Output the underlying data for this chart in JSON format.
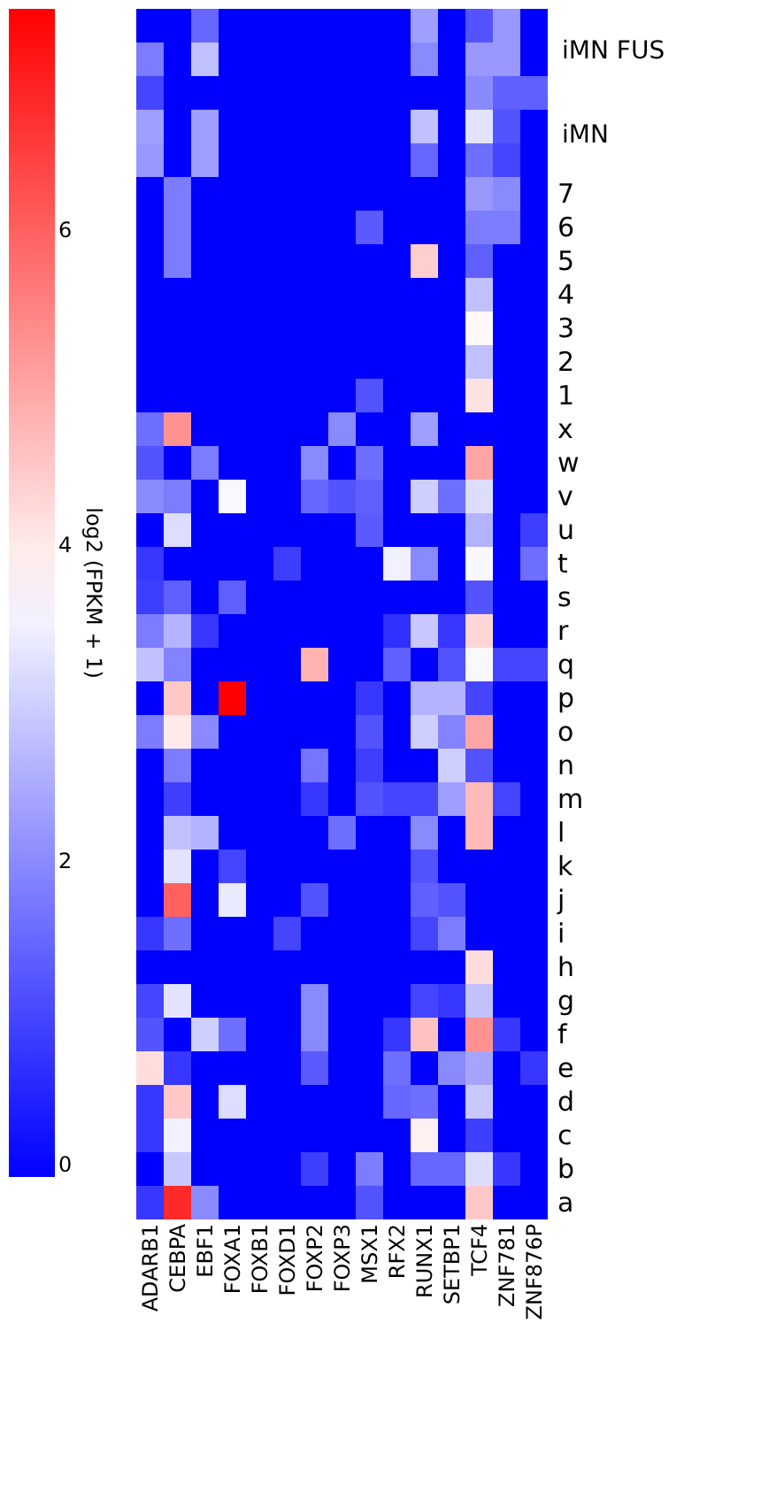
{
  "chart_data": {
    "type": "heatmap",
    "clabel": "log2 (FPKM + 1)",
    "clim": [
      0,
      7.4
    ],
    "cticks": [
      0,
      2,
      4,
      6
    ],
    "annotations": [
      "iMN FUS",
      "iMN"
    ],
    "categories": [
      "ADARB1",
      "CEBPA",
      "EBF1",
      "FOXA1",
      "FOXB1",
      "FOXD1",
      "FOXP2",
      "FOXP3",
      "MSX1",
      "RFX2",
      "RUNX1",
      "SETBP1",
      "TCF4",
      "ZNF781",
      "ZNF876P"
    ],
    "y_categories": [
      null,
      null,
      null,
      null,
      null,
      "7",
      "6",
      "5",
      "4",
      "3",
      "2",
      "1",
      "x",
      "w",
      "v",
      "u",
      "t",
      "s",
      "r",
      "q",
      "p",
      "o",
      "n",
      "m",
      "l",
      "k",
      "j",
      "i",
      "h",
      "g",
      "f",
      "e",
      "d",
      "c",
      "b",
      "a"
    ],
    "cells": [
      [
        0,
        0,
        1.5,
        0,
        0,
        0,
        0,
        0,
        0,
        0,
        2.3,
        0,
        1.2,
        2.2,
        0
      ],
      [
        1.8,
        0,
        2.8,
        0,
        0,
        0,
        0,
        0,
        0,
        0,
        2.0,
        0,
        2.2,
        2.2,
        0
      ],
      [
        1.0,
        0,
        0,
        0,
        0,
        0,
        0,
        0,
        0,
        0,
        0,
        0,
        2.0,
        1.4,
        1.4
      ],
      [
        2.3,
        0,
        2.3,
        0,
        0,
        0,
        0,
        0,
        0,
        0,
        2.8,
        0,
        3.3,
        1.2,
        0
      ],
      [
        2.2,
        0,
        2.3,
        0,
        0,
        0,
        0,
        0,
        0,
        0,
        1.5,
        0,
        1.6,
        1.0,
        0
      ],
      [
        0,
        1.8,
        0,
        0,
        0,
        0,
        0,
        0,
        0,
        0,
        0,
        0,
        2.2,
        2.0,
        0
      ],
      [
        0,
        1.8,
        0,
        0,
        0,
        0,
        0,
        0,
        1.3,
        0,
        0,
        0,
        1.8,
        1.8,
        0
      ],
      [
        0,
        1.8,
        0,
        0,
        0,
        0,
        0,
        0,
        0,
        0,
        4.4,
        0,
        1.4,
        0,
        0
      ],
      [
        0,
        0,
        0,
        0,
        0,
        0,
        0,
        0,
        0,
        0,
        0,
        0,
        2.8,
        0,
        0
      ],
      [
        0,
        0,
        0,
        0,
        0,
        0,
        0,
        0,
        0,
        0,
        0,
        0,
        3.8,
        0,
        0
      ],
      [
        0,
        0,
        0,
        0,
        0,
        0,
        0,
        0,
        0,
        0,
        0,
        0,
        2.8,
        0,
        0
      ],
      [
        0,
        0,
        0,
        0,
        0,
        0,
        0,
        0,
        1.2,
        0,
        0,
        0,
        4.1,
        0,
        0
      ],
      [
        1.6,
        5.3,
        0,
        0,
        0,
        0,
        0,
        2.0,
        0,
        0,
        2.3,
        0,
        0,
        0,
        0
      ],
      [
        1.2,
        0,
        1.8,
        0,
        0,
        0,
        2.0,
        0,
        1.6,
        0,
        0,
        0,
        5.0,
        0,
        0
      ],
      [
        2.0,
        1.8,
        0,
        3.6,
        0,
        0,
        1.5,
        1.2,
        1.4,
        0,
        3.0,
        1.6,
        3.2,
        0,
        0
      ],
      [
        0,
        3.2,
        0,
        0,
        0,
        0,
        0,
        0,
        1.3,
        0,
        0,
        0,
        2.6,
        0,
        0.9
      ],
      [
        0.8,
        0,
        0,
        0,
        0,
        0.9,
        0,
        0,
        0,
        3.5,
        2.0,
        0,
        3.6,
        0,
        1.6
      ],
      [
        0.9,
        1.4,
        0,
        1.4,
        0,
        0,
        0,
        0,
        0,
        0,
        0,
        0,
        1.2,
        0,
        0
      ],
      [
        1.8,
        2.6,
        0.8,
        0,
        0,
        0,
        0,
        0,
        0,
        0.7,
        2.9,
        0.8,
        4.3,
        0,
        0
      ],
      [
        2.8,
        1.9,
        0,
        0,
        0,
        0,
        4.8,
        0,
        0,
        1.4,
        0,
        1.2,
        3.6,
        1.0,
        1.0
      ],
      [
        0,
        4.5,
        0,
        7.4,
        0,
        0,
        0,
        0,
        0.8,
        0,
        2.6,
        2.6,
        1.0,
        0,
        0
      ],
      [
        1.8,
        4.0,
        2.0,
        0,
        0,
        0,
        0,
        0,
        1.2,
        0,
        3.0,
        1.9,
        5.0,
        0,
        0
      ],
      [
        0,
        1.8,
        0,
        0,
        0,
        0,
        1.7,
        0,
        0.9,
        0,
        0,
        3.0,
        1.2,
        0,
        0
      ],
      [
        0,
        0.9,
        0,
        0,
        0,
        0,
        0.8,
        0,
        1.2,
        1.0,
        1.0,
        2.3,
        4.7,
        1.0,
        0
      ],
      [
        0,
        2.8,
        2.6,
        0,
        0,
        0,
        0,
        1.6,
        0,
        0,
        2.0,
        0,
        4.7,
        0,
        0
      ],
      [
        0,
        3.3,
        0,
        1.0,
        0,
        0,
        0,
        0,
        0,
        0,
        1.2,
        0,
        0,
        0,
        0
      ],
      [
        0,
        6.0,
        0,
        3.4,
        0,
        0,
        1.2,
        0,
        0,
        0,
        1.4,
        1.2,
        0,
        0,
        0
      ],
      [
        0.8,
        1.6,
        0,
        0,
        0,
        1.0,
        0,
        0,
        0,
        0,
        1.0,
        1.8,
        0,
        0,
        0
      ],
      [
        0,
        0,
        0,
        0,
        0,
        0,
        0,
        0,
        0,
        0,
        0,
        0,
        4.2,
        0,
        0
      ],
      [
        1.0,
        3.3,
        0,
        0,
        0,
        0,
        2.0,
        0,
        0,
        0,
        1.0,
        0.8,
        2.8,
        0,
        0
      ],
      [
        1.2,
        0,
        3.0,
        1.6,
        0,
        0,
        2.0,
        0,
        0,
        0.8,
        4.6,
        0,
        5.3,
        0.8,
        0
      ],
      [
        4.2,
        0.8,
        0,
        0,
        0,
        0,
        1.3,
        0,
        0,
        1.6,
        0,
        2.0,
        2.4,
        0,
        0.8
      ],
      [
        0.8,
        4.5,
        0,
        3.2,
        0,
        0,
        0,
        0,
        0,
        1.5,
        1.6,
        0,
        2.9,
        0,
        0
      ],
      [
        0.8,
        3.5,
        0,
        0,
        0,
        0,
        0,
        0,
        0,
        0,
        3.9,
        0,
        0.9,
        0,
        0
      ],
      [
        0,
        2.9,
        0,
        0,
        0,
        0,
        0.9,
        0,
        1.8,
        0,
        1.5,
        1.5,
        3.2,
        0.8,
        0
      ],
      [
        0.8,
        6.8,
        2.0,
        0,
        0,
        0,
        0,
        0,
        1.2,
        0,
        0,
        0,
        4.5,
        0,
        0
      ]
    ]
  }
}
